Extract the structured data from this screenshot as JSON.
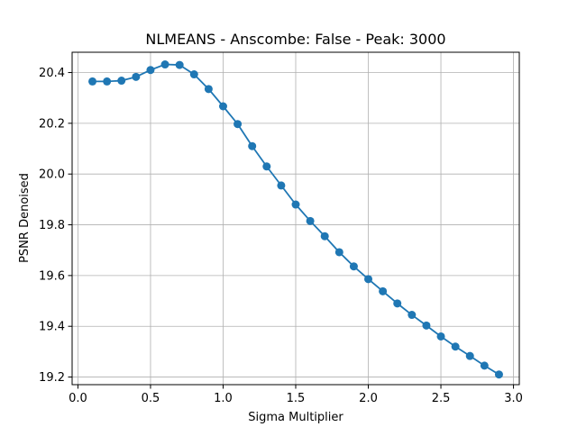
{
  "chart_data": {
    "type": "line",
    "title": "NLMEANS - Anscombe: False - Peak: 3000",
    "xlabel": "Sigma Multiplier",
    "ylabel": "PSNR Denoised",
    "xlim": [
      -0.04,
      3.04
    ],
    "ylim": [
      19.17,
      20.48
    ],
    "grid": true,
    "x_ticks": [
      0.0,
      0.5,
      1.0,
      1.5,
      2.0,
      2.5,
      3.0
    ],
    "x_tick_labels": [
      "0.0",
      "0.5",
      "1.0",
      "1.5",
      "2.0",
      "2.5",
      "3.0"
    ],
    "y_ticks": [
      19.2,
      19.4,
      19.6,
      19.8,
      20.0,
      20.2,
      20.4
    ],
    "y_tick_labels": [
      "19.2",
      "19.4",
      "19.6",
      "19.8",
      "20.0",
      "20.2",
      "20.4"
    ],
    "series": [
      {
        "color": "#1f77b4",
        "marker": "circle",
        "x": [
          0.1,
          0.2,
          0.3,
          0.4,
          0.5,
          0.6,
          0.7,
          0.8,
          0.9,
          1.0,
          1.1,
          1.2,
          1.3,
          1.4,
          1.5,
          1.6,
          1.7,
          1.8,
          1.9,
          2.0,
          2.1,
          2.2,
          2.3,
          2.4,
          2.5,
          2.6,
          2.7,
          2.8,
          2.9
        ],
        "y": [
          20.365,
          20.365,
          20.368,
          20.383,
          20.41,
          20.432,
          20.43,
          20.393,
          20.335,
          20.267,
          20.197,
          20.11,
          20.03,
          19.955,
          19.88,
          19.815,
          19.755,
          19.692,
          19.636,
          19.586,
          19.538,
          19.49,
          19.445,
          19.403,
          19.36,
          19.32,
          19.283,
          19.245,
          19.21
        ]
      }
    ]
  }
}
